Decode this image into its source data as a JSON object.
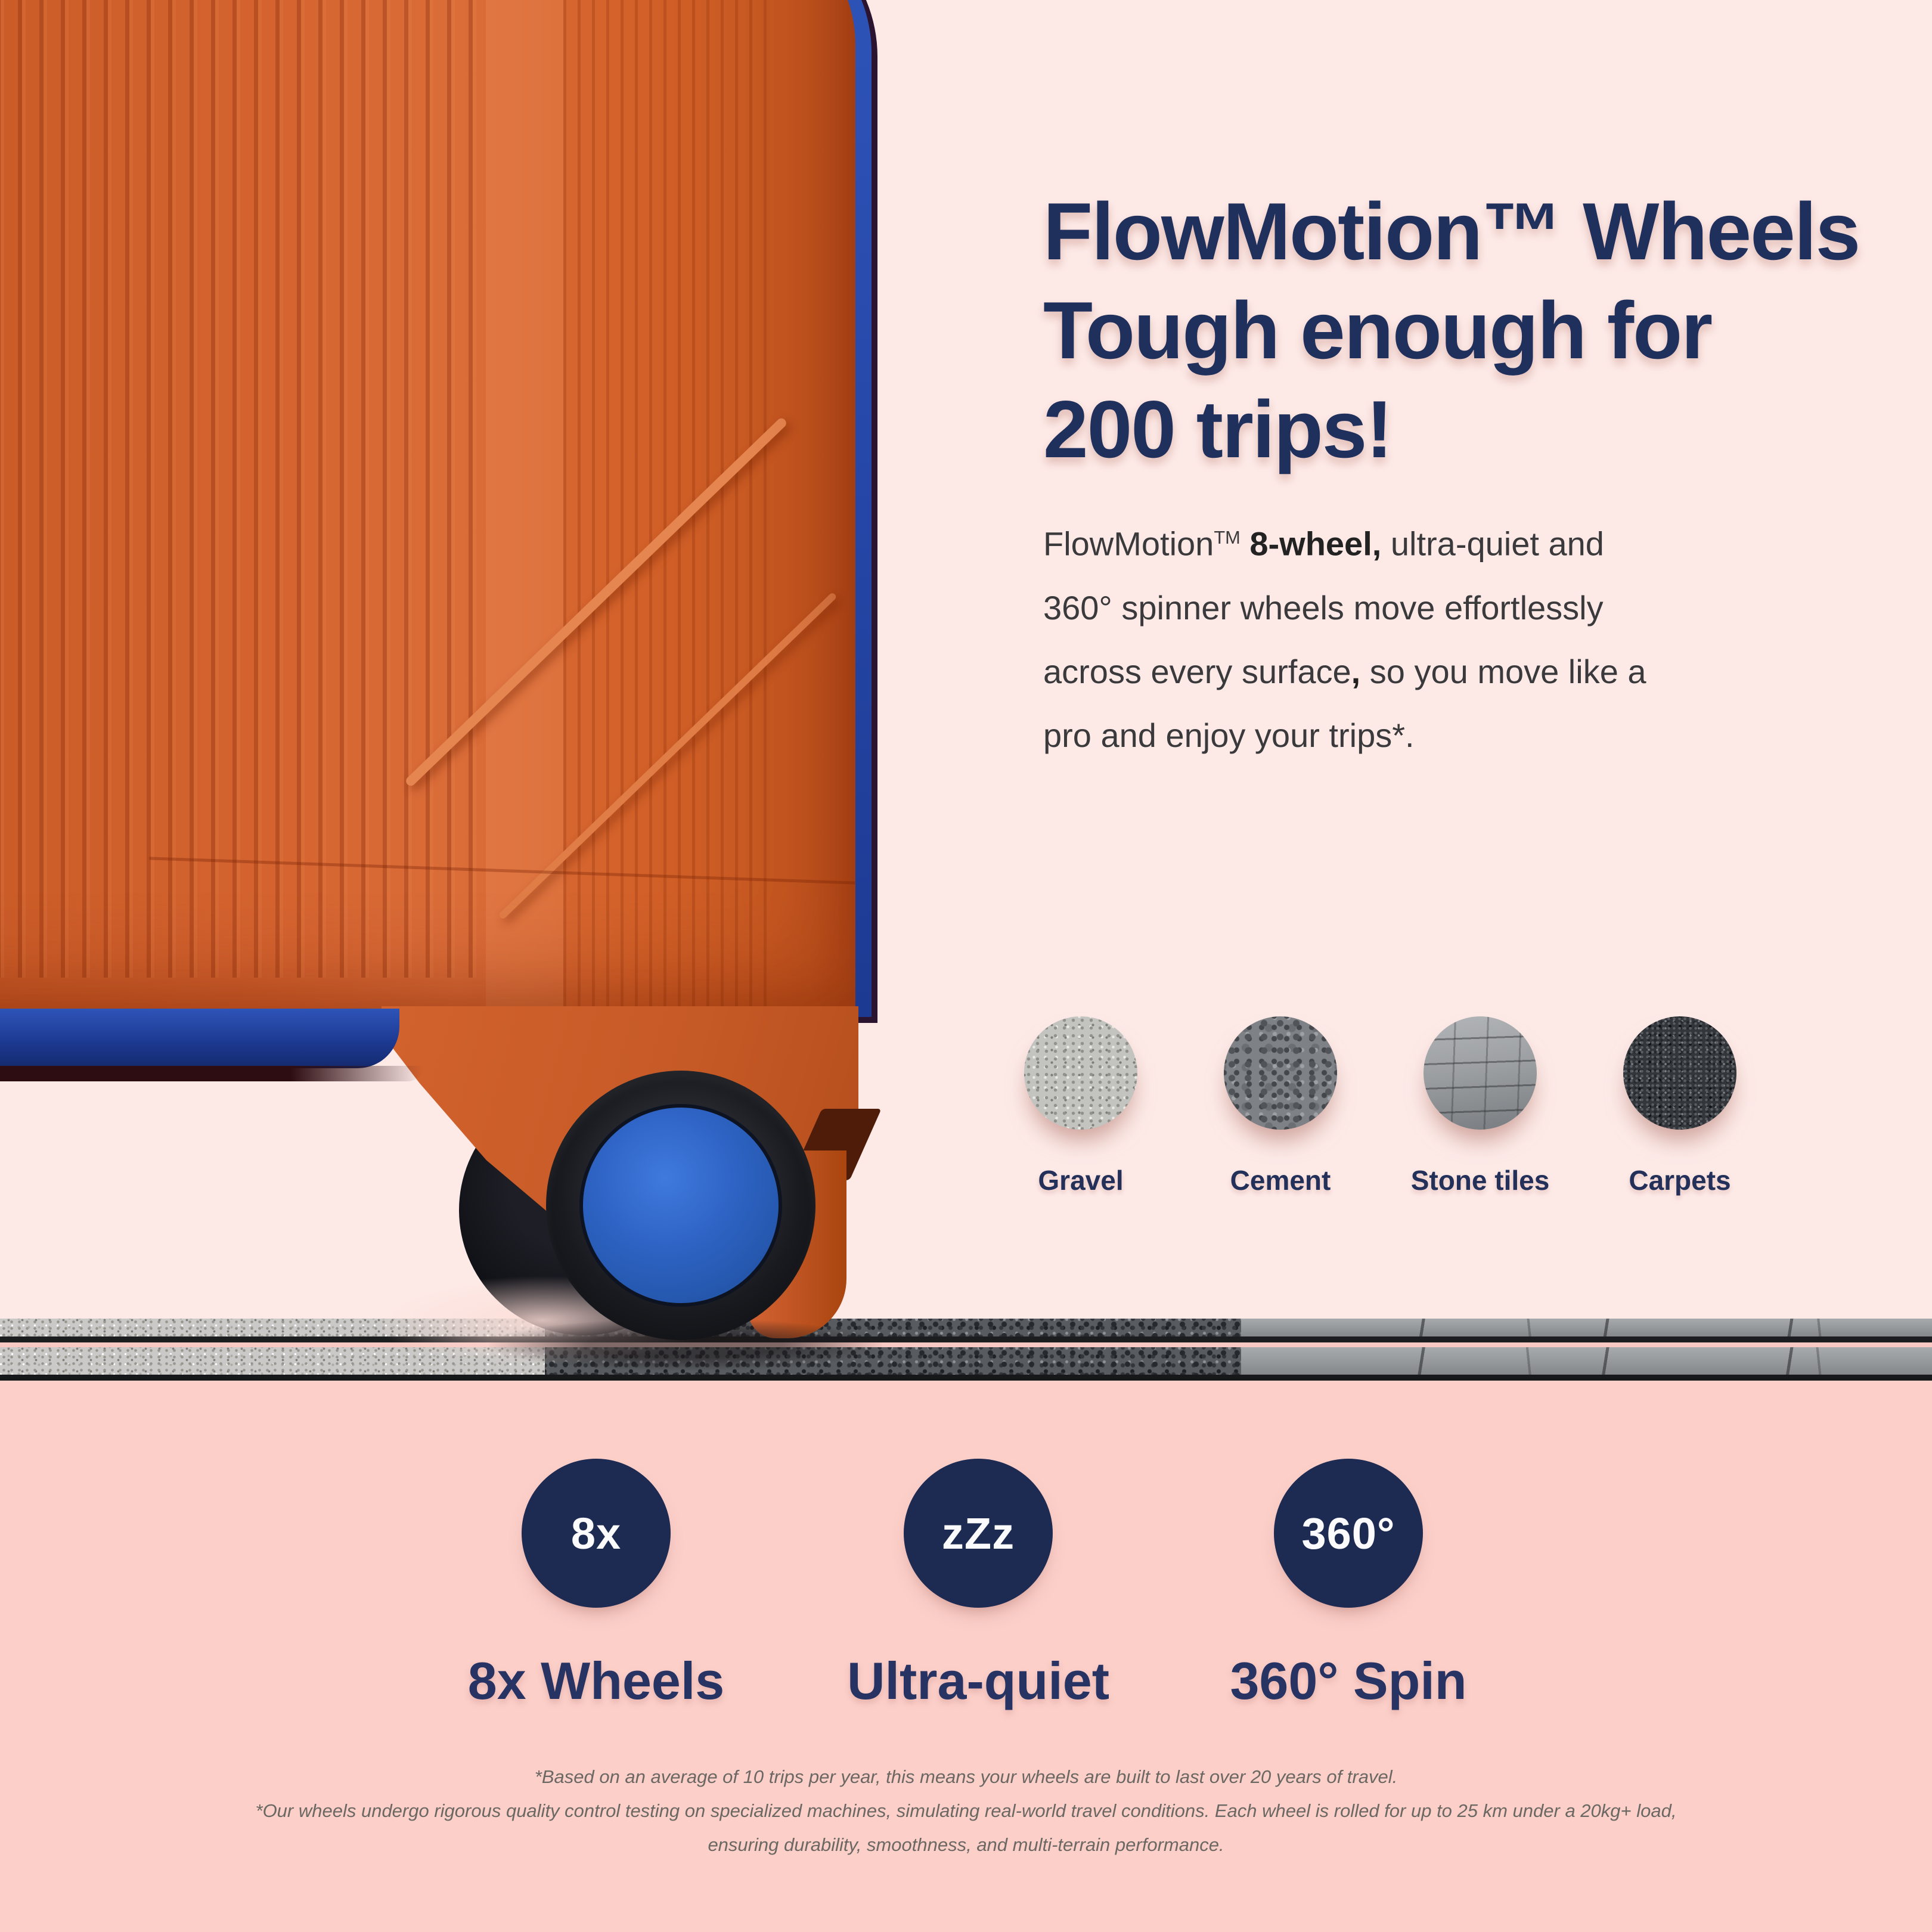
{
  "theme": {
    "background_top": "#fdeae7",
    "background_bottom": "#fccfc9",
    "accent_navy": "#20305c",
    "badge_navy": "#1d2a52",
    "suitcase_orange": "#d2622e",
    "wheel_blue": "#2e63c4"
  },
  "headline": {
    "lines": [
      "FlowMotion™ Wheels",
      "Tough enough for",
      "200 trips!"
    ]
  },
  "body": {
    "lines": [
      {
        "segs": [
          {
            "t": "FlowMotion"
          },
          {
            "t": "TM"
          },
          {
            "t": " 8-wheel,"
          },
          {
            "t": " ultra-quiet and"
          }
        ]
      },
      {
        "segs": [
          {
            "t": "360° spinner wheels move effortlessly"
          }
        ]
      },
      {
        "segs": [
          {
            "t": "across every surface"
          },
          {
            "t": ","
          },
          {
            "t": " so you move like a"
          }
        ]
      },
      {
        "segs": [
          {
            "t": "pro and enjoy your trips*."
          }
        ]
      }
    ]
  },
  "surfaces": [
    {
      "name": "gravel",
      "label": "Gravel"
    },
    {
      "name": "cement",
      "label": "Cement"
    },
    {
      "name": "stone-tiles",
      "label": "Stone tiles"
    },
    {
      "name": "carpets",
      "label": "Carpets"
    }
  ],
  "features": [
    {
      "badge": "8x",
      "label": "8x Wheels"
    },
    {
      "badge": "zZz",
      "label": "Ultra-quiet"
    },
    {
      "badge": "360°",
      "label": "360° Spin"
    }
  ],
  "footnotes": {
    "lines": [
      "*Based on an average of 10 trips per year, this means your wheels are built to last over 20 years of travel.",
      "*Our wheels undergo rigorous quality control testing on specialized machines, simulating real-world travel conditions. Each wheel is rolled for up to 25 km under a 20kg+ load,",
      "ensuring durability, smoothness, and multi-terrain performance."
    ]
  },
  "ground": {
    "segment_order": [
      "gravel",
      "asphalt",
      "stone tiles"
    ]
  }
}
